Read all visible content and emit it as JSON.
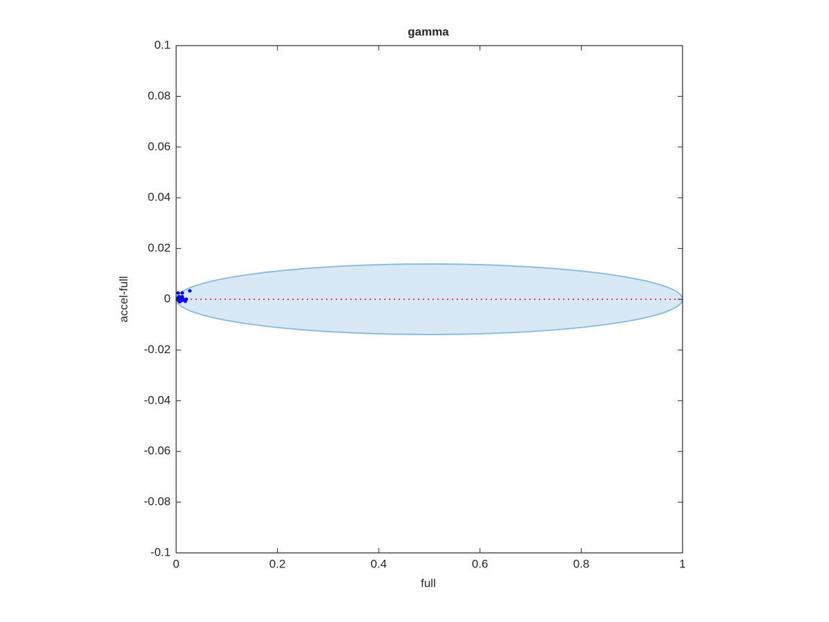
{
  "chart_data": {
    "type": "scatter",
    "title": "gamma",
    "x_label": "full",
    "y_label": "accel-full",
    "x": [
      0.003,
      0.004,
      0.005,
      0.006,
      0.007,
      0.008,
      0.009,
      0.01,
      0.012,
      0.013,
      0.016,
      0.018,
      0.02,
      0.027,
      0.004,
      0.012
    ],
    "values": [
      0,
      0.0005,
      -0.0005,
      0.001,
      -0.001,
      0,
      0.0008,
      -0.0006,
      0.0025,
      0.0003,
      -0.0004,
      -0.0008,
      0,
      0.0033,
      0.0025,
      0.001
    ],
    "color": "#0000ff",
    "ellipse": {
      "center": [
        0.5,
        0
      ],
      "radii": [
        0.5,
        0.0139
      ],
      "fill": "#d9e8f5",
      "stroke": "#8bbde0"
    },
    "reference_line": 0,
    "reference_color": "#ff0000",
    "xlim": [
      0,
      1
    ],
    "xticks": [
      0,
      0.2,
      0.4,
      0.6,
      0.8,
      1
    ],
    "ylim": [
      -0.1,
      0.1
    ],
    "yticks": [
      -0.1,
      -0.08,
      -0.06,
      -0.04,
      -0.02,
      0,
      0.02,
      0.04,
      0.06,
      0.08,
      0.1
    ]
  }
}
